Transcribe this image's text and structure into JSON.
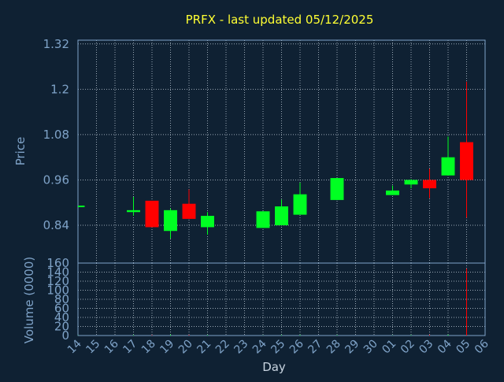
{
  "chart_data": {
    "type": "candlestick",
    "title": "PRFX - last updated 05/12/2025",
    "xlabel": "Day",
    "ylabel_price": "Price",
    "ylabel_volume": "Volume (0000)",
    "x_ticks": [
      "14",
      "15",
      "16",
      "17",
      "18",
      "19",
      "20",
      "21",
      "22",
      "23",
      "24",
      "25",
      "26",
      "27",
      "28",
      "29",
      "30",
      "01",
      "02",
      "03",
      "04",
      "05",
      "06"
    ],
    "price_ticks": [
      0.84,
      0.96,
      1.08,
      1.2,
      1.32
    ],
    "price_tick_labels": [
      "0.84",
      "0.96",
      "1.08",
      "1.2",
      "1.32"
    ],
    "price_range": [
      0.74,
      1.33
    ],
    "volume_ticks": [
      0,
      20,
      40,
      60,
      80,
      100,
      120,
      140,
      160
    ],
    "volume_tick_labels": [
      "0",
      "20",
      "40",
      "60",
      "80",
      "100",
      "120",
      "140",
      "160"
    ],
    "volume_range": [
      0,
      160
    ],
    "grid": true,
    "colors": {
      "background": "#0f2133",
      "axis": "#7fa3c8",
      "grid": "#c8d4e0",
      "title": "#ffff33",
      "up": "#00ff22",
      "down": "#ff0000"
    },
    "candles": [
      {
        "day": "14",
        "open": 0.89,
        "high": 0.89,
        "low": 0.89,
        "close": 0.89,
        "volume": 0.5
      },
      {
        "day": "17",
        "open": 0.875,
        "high": 0.915,
        "low": 0.865,
        "close": 0.88,
        "volume": 1
      },
      {
        "day": "18",
        "open": 0.905,
        "high": 0.905,
        "low": 0.835,
        "close": 0.835,
        "volume": 1
      },
      {
        "day": "19",
        "open": 0.825,
        "high": 0.885,
        "low": 0.805,
        "close": 0.88,
        "volume": 2
      },
      {
        "day": "20",
        "open": 0.897,
        "high": 0.935,
        "low": 0.857,
        "close": 0.857,
        "volume": 1.5
      },
      {
        "day": "21",
        "open": 0.835,
        "high": 0.875,
        "low": 0.815,
        "close": 0.865,
        "volume": 1
      },
      {
        "day": "24",
        "open": 0.833,
        "high": 0.877,
        "low": 0.833,
        "close": 0.877,
        "volume": 0.5
      },
      {
        "day": "25",
        "open": 0.84,
        "high": 0.908,
        "low": 0.84,
        "close": 0.89,
        "volume": 1
      },
      {
        "day": "26",
        "open": 0.868,
        "high": 0.953,
        "low": 0.868,
        "close": 0.922,
        "volume": 1.5
      },
      {
        "day": "28",
        "open": 0.907,
        "high": 0.965,
        "low": 0.907,
        "close": 0.965,
        "volume": 1
      },
      {
        "day": "01",
        "open": 0.92,
        "high": 0.945,
        "low": 0.92,
        "close": 0.932,
        "volume": 0.5
      },
      {
        "day": "02",
        "open": 0.948,
        "high": 0.962,
        "low": 0.938,
        "close": 0.96,
        "volume": 1
      },
      {
        "day": "03",
        "open": 0.96,
        "high": 0.99,
        "low": 0.912,
        "close": 0.938,
        "volume": 2
      },
      {
        "day": "04",
        "open": 0.972,
        "high": 1.075,
        "low": 0.972,
        "close": 1.02,
        "volume": 2
      },
      {
        "day": "05",
        "open": 1.06,
        "high": 1.22,
        "low": 0.86,
        "close": 0.96,
        "volume": 148
      }
    ]
  }
}
